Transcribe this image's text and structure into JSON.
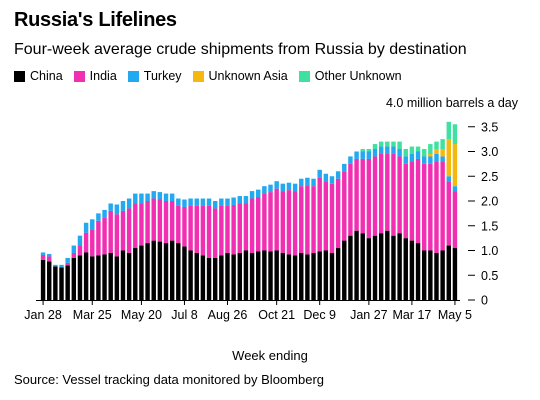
{
  "header": {
    "title": "Russia's Lifelines",
    "subtitle": "Four-week average crude shipments from Russia by destination"
  },
  "legend": [
    {
      "label": "China",
      "color": "#000000"
    },
    {
      "label": "India",
      "color": "#f02fb2"
    },
    {
      "label": "Turkey",
      "color": "#22a9f0"
    },
    {
      "label": "Unknown Asia",
      "color": "#f5b80f"
    },
    {
      "label": "Other Unknown",
      "color": "#3fe0a0"
    }
  ],
  "chart_data": {
    "type": "bar",
    "stacked": true,
    "y_unit_label": "4.0 million barrels a day",
    "ylim": [
      0,
      4
    ],
    "yticks": [
      0,
      0.5,
      1.0,
      1.5,
      2.0,
      2.5,
      3.0,
      3.5
    ],
    "ytick_labels": [
      "0",
      "0.5",
      "1.0",
      "1.5",
      "2.0",
      "2.5",
      "3.0",
      "3.5"
    ],
    "y_axis_side": "right",
    "xlabel": "Week ending",
    "tick_labels": [
      "Jan 28",
      "Mar 25",
      "May 20",
      "Jul 8",
      "Aug 26",
      "Oct 21",
      "Dec 9",
      "Jan 27",
      "Mar 17",
      "May 5"
    ],
    "tick_positions": [
      0,
      8,
      16,
      23,
      30,
      38,
      45,
      53,
      60,
      67
    ],
    "series": [
      {
        "name": "China",
        "color": "#000000",
        "values": [
          0.81,
          0.78,
          0.68,
          0.66,
          0.7,
          0.85,
          0.9,
          0.96,
          0.88,
          0.9,
          0.92,
          0.95,
          0.88,
          1.0,
          0.95,
          1.05,
          1.1,
          1.15,
          1.2,
          1.18,
          1.15,
          1.2,
          1.15,
          1.08,
          1.0,
          0.95,
          0.9,
          0.85,
          0.85,
          0.9,
          0.95,
          0.92,
          0.95,
          1.0,
          0.95,
          0.98,
          1.0,
          0.98,
          1.0,
          0.95,
          0.92,
          0.9,
          0.95,
          0.92,
          0.95,
          0.98,
          1.0,
          0.95,
          1.05,
          1.2,
          1.3,
          1.4,
          1.35,
          1.25,
          1.3,
          1.35,
          1.4,
          1.3,
          1.35,
          1.25,
          1.2,
          1.15,
          1.0,
          1.0,
          0.95,
          1.0,
          1.1,
          1.05
        ]
      },
      {
        "name": "India",
        "color": "#f02fb2",
        "values": [
          0.1,
          0.1,
          0.0,
          0.0,
          0.05,
          0.1,
          0.2,
          0.4,
          0.55,
          0.7,
          0.75,
          0.85,
          0.85,
          0.8,
          0.9,
          0.9,
          0.85,
          0.85,
          0.85,
          0.85,
          0.85,
          0.8,
          0.75,
          0.8,
          0.9,
          0.95,
          1.0,
          1.05,
          1.0,
          1.0,
          0.95,
          1.0,
          1.0,
          0.95,
          1.1,
          1.1,
          1.15,
          1.2,
          1.25,
          1.25,
          1.3,
          1.3,
          1.35,
          1.4,
          1.35,
          1.5,
          1.4,
          1.4,
          1.4,
          1.4,
          1.45,
          1.45,
          1.5,
          1.6,
          1.6,
          1.6,
          1.55,
          1.65,
          1.55,
          1.5,
          1.6,
          1.7,
          1.75,
          1.75,
          1.85,
          1.8,
          1.3,
          1.15
        ]
      },
      {
        "name": "Turkey",
        "color": "#22a9f0",
        "values": [
          0.05,
          0.05,
          0.03,
          0.05,
          0.1,
          0.15,
          0.2,
          0.2,
          0.2,
          0.15,
          0.15,
          0.15,
          0.2,
          0.2,
          0.2,
          0.2,
          0.2,
          0.15,
          0.15,
          0.15,
          0.15,
          0.15,
          0.15,
          0.15,
          0.15,
          0.15,
          0.15,
          0.15,
          0.15,
          0.15,
          0.15,
          0.15,
          0.15,
          0.15,
          0.15,
          0.15,
          0.15,
          0.15,
          0.15,
          0.15,
          0.15,
          0.15,
          0.15,
          0.15,
          0.15,
          0.15,
          0.15,
          0.15,
          0.15,
          0.15,
          0.15,
          0.15,
          0.15,
          0.15,
          0.15,
          0.15,
          0.15,
          0.15,
          0.15,
          0.15,
          0.15,
          0.15,
          0.15,
          0.15,
          0.15,
          0.1,
          0.1,
          0.1
        ]
      },
      {
        "name": "Unknown Asia",
        "color": "#f5b80f",
        "values": [
          0,
          0,
          0,
          0,
          0,
          0,
          0,
          0,
          0,
          0,
          0,
          0,
          0,
          0,
          0,
          0,
          0,
          0,
          0,
          0,
          0,
          0,
          0,
          0,
          0,
          0,
          0,
          0,
          0,
          0,
          0,
          0,
          0,
          0,
          0,
          0,
          0,
          0,
          0,
          0,
          0,
          0,
          0,
          0,
          0,
          0,
          0,
          0,
          0,
          0,
          0,
          0,
          0,
          0,
          0,
          0,
          0,
          0,
          0,
          0,
          0,
          0,
          0,
          0.05,
          0.1,
          0.15,
          0.75,
          0.85
        ]
      },
      {
        "name": "Other Unknown",
        "color": "#3fe0a0",
        "values": [
          0,
          0,
          0,
          0,
          0,
          0,
          0,
          0,
          0,
          0,
          0,
          0,
          0,
          0,
          0,
          0,
          0,
          0,
          0,
          0,
          0,
          0,
          0,
          0,
          0,
          0,
          0,
          0,
          0,
          0,
          0,
          0,
          0,
          0,
          0,
          0,
          0,
          0,
          0,
          0,
          0,
          0,
          0,
          0,
          0,
          0,
          0,
          0,
          0,
          0,
          0,
          0,
          0.05,
          0.05,
          0.1,
          0.1,
          0.1,
          0.1,
          0.15,
          0.15,
          0.15,
          0.1,
          0.15,
          0.2,
          0.15,
          0.2,
          0.35,
          0.4
        ]
      }
    ]
  },
  "footer": {
    "source": "Source: Vessel tracking data monitored by Bloomberg"
  }
}
